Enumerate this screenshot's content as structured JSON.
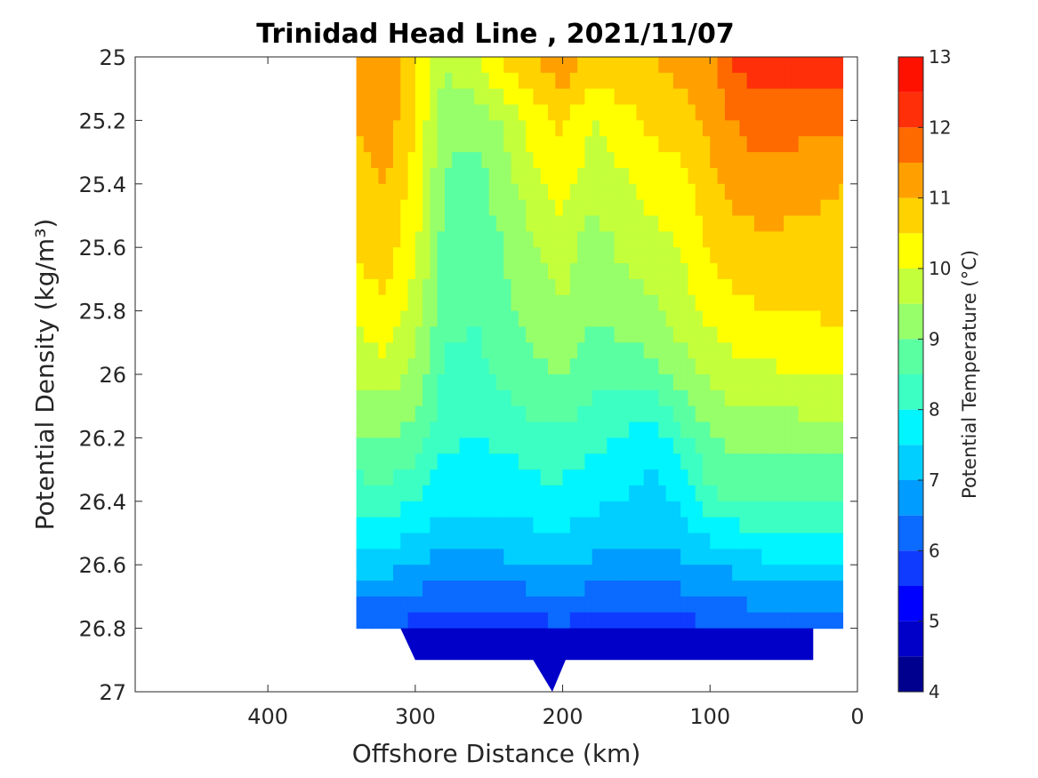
{
  "chart_data": {
    "type": "contour",
    "title": "Trinidad Head Line , 2021/11/07",
    "xlabel": "Offshore Distance (km)",
    "ylabel": "Potential Density (kg/m³)",
    "xlim": [
      490,
      0
    ],
    "ylim": [
      25,
      27
    ],
    "x_reversed": true,
    "y_reversed": true,
    "xticks": [
      "400",
      "300",
      "200",
      "100",
      "0"
    ],
    "yticks": [
      "25",
      "25.2",
      "25.4",
      "25.6",
      "25.8",
      "26",
      "26.2",
      "26.4",
      "26.6",
      "26.8",
      "27"
    ],
    "colorbar": {
      "label": "Potential Temperature (°C)",
      "ticks": [
        "4",
        "5",
        "6",
        "7",
        "8",
        "9",
        "10",
        "11",
        "12",
        "13"
      ],
      "levels": [
        4,
        4.5,
        5,
        5.5,
        6,
        6.5,
        7,
        7.5,
        8,
        8.5,
        9,
        9.5,
        10,
        10.5,
        11,
        11.5,
        12,
        12.5,
        13
      ],
      "colors": [
        "#00008f",
        "#0000c8",
        "#0000ff",
        "#0f3bff",
        "#0b6aff",
        "#009cff",
        "#00cfff",
        "#00f5ff",
        "#3cffc3",
        "#5affa2",
        "#96ff69",
        "#c4ff3b",
        "#ffff00",
        "#ffd200",
        "#ffa000",
        "#ff6a00",
        "#ff2f0a",
        "#ff1100",
        "#b40000"
      ]
    },
    "profile_distances_km": [
      340,
      320,
      300,
      280,
      260,
      240,
      220,
      200,
      180,
      160,
      140,
      120,
      100,
      80,
      60,
      40,
      20,
      10
    ],
    "isopycnal_temperature_note": "values read at density levels",
    "density_levels": [
      25.0,
      25.2,
      25.4,
      25.6,
      25.8,
      26.0,
      26.2,
      26.4,
      26.6,
      26.8
    ],
    "temperature_rows": [
      [
        11.2,
        11.5,
        10.6,
        9.6,
        10.0,
        10.7,
        11.0,
        11.4,
        10.8,
        11.0,
        11.0,
        11.2,
        11.4,
        12.2,
        12.2,
        12.2,
        12.3,
        12.4
      ],
      [
        11.0,
        11.3,
        10.5,
        9.2,
        9.1,
        9.6,
        10.2,
        10.6,
        10.0,
        10.3,
        10.6,
        10.8,
        11.2,
        11.6,
        11.8,
        11.7,
        11.6,
        11.6
      ],
      [
        10.8,
        11.0,
        10.3,
        8.9,
        8.8,
        9.2,
        9.9,
        10.2,
        9.7,
        9.9,
        10.2,
        10.3,
        10.8,
        11.2,
        11.3,
        11.2,
        11.1,
        11.0
      ],
      [
        10.6,
        10.8,
        10.1,
        8.8,
        8.8,
        9.0,
        9.4,
        9.8,
        9.2,
        9.6,
        9.8,
        10.0,
        10.6,
        10.8,
        10.9,
        10.8,
        10.8,
        10.8
      ],
      [
        10.2,
        10.4,
        9.8,
        8.7,
        8.6,
        8.9,
        9.2,
        9.5,
        9.1,
        9.2,
        9.4,
        9.7,
        10.2,
        10.4,
        10.5,
        10.5,
        10.6,
        10.6
      ],
      [
        9.6,
        9.8,
        9.3,
        8.4,
        8.2,
        8.7,
        8.9,
        9.0,
        8.7,
        8.7,
        8.8,
        9.3,
        9.6,
        9.8,
        9.9,
        10.0,
        10.0,
        10.0
      ],
      [
        8.9,
        9.0,
        8.8,
        8.1,
        8.0,
        8.1,
        8.3,
        8.4,
        8.1,
        8.0,
        7.6,
        8.3,
        9.0,
        9.2,
        9.2,
        9.2,
        9.2,
        9.2
      ],
      [
        8.2,
        8.3,
        8.0,
        7.6,
        7.6,
        7.6,
        7.8,
        7.8,
        7.6,
        7.5,
        7.3,
        7.6,
        8.4,
        8.5,
        8.6,
        8.6,
        8.5,
        8.5
      ],
      [
        7.2,
        7.2,
        7.0,
        6.8,
        6.9,
        6.9,
        7.0,
        7.1,
        6.9,
        6.9,
        6.9,
        6.9,
        7.0,
        7.2,
        7.4,
        7.4,
        7.4,
        7.4
      ],
      [
        6.0,
        6.0,
        5.8,
        5.7,
        5.8,
        5.6,
        5.8,
        5.9,
        5.7,
        5.6,
        5.6,
        5.8,
        5.9,
        6.0,
        6.1,
        6.2,
        6.2,
        6.2
      ]
    ]
  }
}
